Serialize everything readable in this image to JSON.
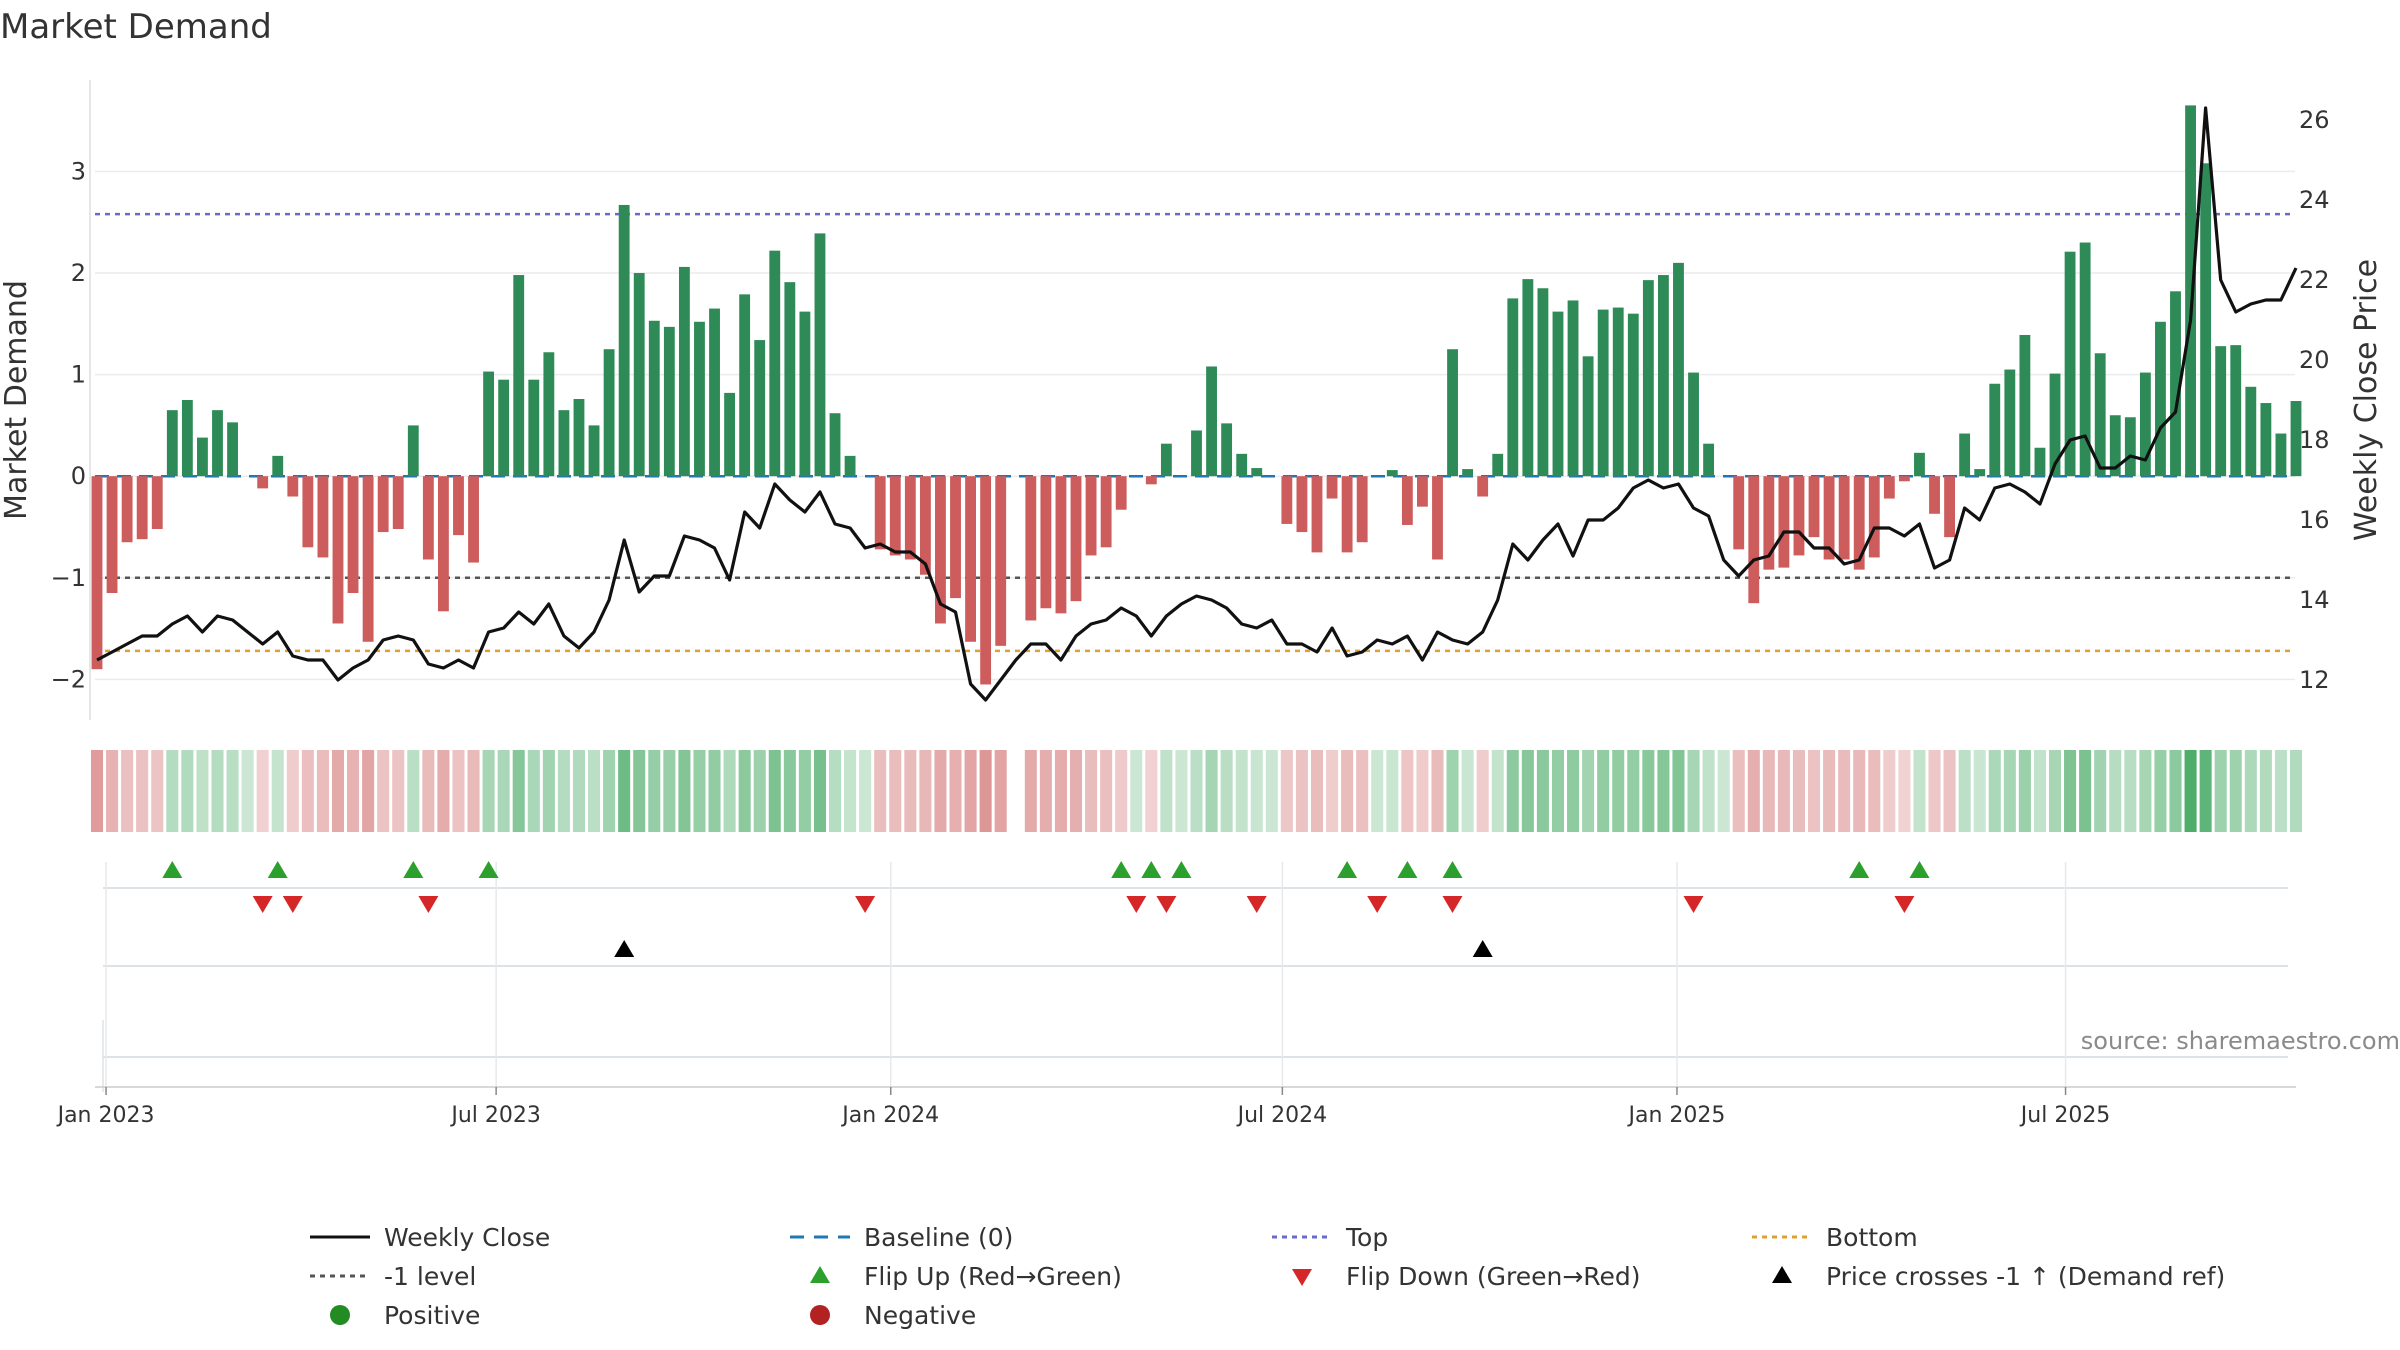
{
  "title": "Market Demand",
  "source": "source: sharemaestro.com",
  "colors": {
    "positive": "#2e8b57",
    "negative": "#cd5c5c",
    "price": "#111111",
    "baseline": "#1f77b4",
    "top": "#6a6acd",
    "minus1": "#555555",
    "bottom": "#e0a030",
    "flip_up": "#2ca02c",
    "flip_down": "#d62728",
    "cross": "#000000",
    "pos_dot": "#228b22",
    "neg_dot": "#b22222"
  },
  "chart_data": {
    "type": "bar",
    "title": "Market Demand",
    "ylabel_left": "Market Demand",
    "ylabel_right": "Weekly Close Price",
    "ylim_left": [
      -2.4,
      3.9
    ],
    "ylim_right": [
      11.0,
      27.0
    ],
    "yticks_left": [
      {
        "v": 3,
        "label": "3"
      },
      {
        "v": 2,
        "label": "2"
      },
      {
        "v": 1,
        "label": "1"
      },
      {
        "v": 0,
        "label": "0"
      },
      {
        "v": -1,
        "label": "−1"
      },
      {
        "v": -2,
        "label": "−2"
      }
    ],
    "yticks_right": [
      {
        "v": 26,
        "label": "26"
      },
      {
        "v": 24,
        "label": "24"
      },
      {
        "v": 22,
        "label": "22"
      },
      {
        "v": 20,
        "label": "20"
      },
      {
        "v": 18,
        "label": "18"
      },
      {
        "v": 16,
        "label": "16"
      },
      {
        "v": 14,
        "label": "14"
      },
      {
        "v": 12,
        "label": "12"
      }
    ],
    "xticks": [
      {
        "week": 0.6,
        "label": "Jan 2023"
      },
      {
        "week": 26.5,
        "label": "Jul 2023"
      },
      {
        "week": 52.7,
        "label": "Jan 2024"
      },
      {
        "week": 78.7,
        "label": "Jul 2024"
      },
      {
        "week": 104.9,
        "label": "Jan 2025"
      },
      {
        "week": 130.7,
        "label": "Jul 2025"
      }
    ],
    "reference_lines": {
      "baseline": 0,
      "top": 2.58,
      "minus1": -1,
      "bottom": -1.72
    },
    "demand": [
      -1.9,
      -1.15,
      -0.65,
      -0.62,
      -0.52,
      0.65,
      0.75,
      0.38,
      0.65,
      0.53,
      0.0,
      -0.12,
      0.2,
      -0.2,
      -0.7,
      -0.8,
      -1.45,
      -1.15,
      -1.63,
      -0.55,
      -0.52,
      0.5,
      -0.82,
      -1.33,
      -0.58,
      -0.85,
      1.03,
      0.95,
      1.98,
      0.95,
      1.22,
      0.65,
      0.76,
      0.5,
      1.25,
      2.67,
      2.0,
      1.53,
      1.47,
      2.06,
      1.52,
      1.65,
      0.82,
      1.79,
      1.34,
      2.22,
      1.91,
      1.62,
      2.39,
      0.62,
      0.2,
      0.0,
      -0.72,
      -0.78,
      -0.82,
      -0.97,
      -1.45,
      -1.2,
      -1.63,
      -2.05,
      -1.67,
      null,
      -1.42,
      -1.3,
      -1.35,
      -1.23,
      -0.78,
      -0.7,
      -0.33,
      0.0,
      -0.08,
      0.32,
      0.0,
      0.45,
      1.08,
      0.52,
      0.22,
      0.08,
      0.0,
      -0.47,
      -0.55,
      -0.75,
      -0.22,
      -0.75,
      -0.65,
      0.0,
      0.06,
      -0.48,
      -0.3,
      -0.82,
      1.25,
      0.07,
      -0.2,
      0.22,
      1.75,
      1.94,
      1.85,
      1.62,
      1.73,
      1.18,
      1.64,
      1.66,
      1.6,
      1.93,
      1.98,
      2.1,
      1.02,
      0.32,
      0.0,
      -0.72,
      -1.25,
      -0.92,
      -0.9,
      -0.78,
      -0.6,
      -0.82,
      -0.82,
      -0.92,
      -0.8,
      -0.22,
      -0.05,
      0.23,
      -0.37,
      -0.6,
      0.42,
      0.07,
      0.91,
      1.05,
      1.39,
      0.28,
      1.01,
      2.21,
      2.3,
      1.21,
      0.6,
      0.58,
      1.02,
      1.52,
      1.82,
      3.65,
      3.08,
      1.28,
      1.29,
      0.88,
      0.72,
      0.42,
      0.74
    ],
    "price": [
      12.5,
      12.7,
      12.9,
      13.1,
      13.1,
      13.4,
      13.6,
      13.2,
      13.6,
      13.5,
      13.2,
      12.9,
      13.2,
      12.6,
      12.5,
      12.5,
      12.0,
      12.3,
      12.5,
      13.0,
      13.1,
      13.0,
      12.4,
      12.3,
      12.5,
      12.3,
      13.2,
      13.3,
      13.7,
      13.4,
      13.9,
      13.1,
      12.8,
      13.2,
      14.0,
      15.5,
      14.2,
      14.6,
      14.6,
      15.6,
      15.5,
      15.3,
      14.5,
      16.2,
      15.8,
      16.9,
      16.5,
      16.2,
      16.7,
      15.9,
      15.8,
      15.3,
      15.4,
      15.2,
      15.2,
      14.9,
      13.9,
      13.7,
      11.9,
      11.5,
      12.0,
      12.5,
      12.9,
      12.9,
      12.5,
      13.1,
      13.4,
      13.5,
      13.8,
      13.6,
      13.1,
      13.6,
      13.9,
      14.1,
      14.0,
      13.8,
      13.4,
      13.3,
      13.5,
      12.9,
      12.9,
      12.7,
      13.3,
      12.6,
      12.7,
      13.0,
      12.9,
      13.1,
      12.5,
      13.2,
      13.0,
      12.9,
      13.2,
      14.0,
      15.4,
      15.0,
      15.5,
      15.9,
      15.1,
      16.0,
      16.0,
      16.3,
      16.8,
      17.0,
      16.8,
      16.9,
      16.3,
      16.1,
      15.0,
      14.6,
      15.0,
      15.1,
      15.7,
      15.7,
      15.3,
      15.3,
      14.9,
      15.0,
      15.8,
      15.8,
      15.6,
      15.9,
      14.8,
      15.0,
      16.3,
      16.0,
      16.8,
      16.9,
      16.7,
      16.4,
      17.4,
      18.0,
      18.1,
      17.3,
      17.3,
      17.6,
      17.5,
      18.3,
      18.7,
      21.0,
      26.3,
      22.0,
      21.2,
      21.4,
      21.5,
      21.5,
      22.3
    ],
    "flip_up_weeks": [
      5,
      12,
      21,
      26,
      68,
      70,
      72,
      83,
      87,
      90,
      117,
      121
    ],
    "flip_down_weeks": [
      11,
      13,
      22,
      51,
      69,
      71,
      77,
      85,
      90,
      106,
      120
    ],
    "cross_weeks": [
      35,
      92
    ],
    "heat_gap_weeks": [
      61
    ],
    "legend": [
      {
        "key": "weekly_close",
        "label": "Weekly Close"
      },
      {
        "key": "baseline",
        "label": "Baseline (0)"
      },
      {
        "key": "top",
        "label": "Top"
      },
      {
        "key": "bottom",
        "label": "Bottom"
      },
      {
        "key": "minus1",
        "label": "-1 level"
      },
      {
        "key": "flip_up",
        "label": "Flip Up (Red→Green)"
      },
      {
        "key": "flip_down",
        "label": "Flip Down (Green→Red)"
      },
      {
        "key": "cross",
        "label": "Price crosses -1 ↑ (Demand ref)"
      },
      {
        "key": "positive",
        "label": "Positive"
      },
      {
        "key": "negative",
        "label": "Negative"
      }
    ]
  }
}
